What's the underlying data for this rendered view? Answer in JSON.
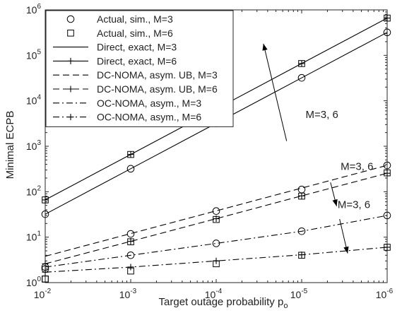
{
  "chart_data": {
    "type": "line",
    "title": "",
    "xlabel": "Target outage probability p",
    "xlabel_sub": "o",
    "ylabel": "Minimal ECPB",
    "x_scale": "log",
    "x_reversed": true,
    "y_scale": "log",
    "xlim": [
      0.01,
      1e-06
    ],
    "ylim": [
      1,
      1000000
    ],
    "x_ticks": [
      {
        "value": 0.01,
        "base": "10",
        "exp": "-2"
      },
      {
        "value": 0.001,
        "base": "10",
        "exp": "-3"
      },
      {
        "value": 0.0001,
        "base": "10",
        "exp": "-4"
      },
      {
        "value": 1e-05,
        "base": "10",
        "exp": "-5"
      },
      {
        "value": 1e-06,
        "base": "10",
        "exp": "-6"
      }
    ],
    "y_ticks": [
      {
        "value": 1,
        "base": "10",
        "exp": "0"
      },
      {
        "value": 10,
        "base": "10",
        "exp": "1"
      },
      {
        "value": 100,
        "base": "10",
        "exp": "2"
      },
      {
        "value": 1000,
        "base": "10",
        "exp": "3"
      },
      {
        "value": 10000,
        "base": "10",
        "exp": "4"
      },
      {
        "value": 100000,
        "base": "10",
        "exp": "5"
      },
      {
        "value": 1000000,
        "base": "10",
        "exp": "6"
      }
    ],
    "grid": false,
    "legend_position": "top-left",
    "x": [
      0.01,
      0.001,
      0.0001,
      1e-05,
      1e-06
    ],
    "series": [
      {
        "name": "Actual, sim., M=3",
        "marker": "circle",
        "dash": "none",
        "values": [
          2.0,
          11.8,
          37.5,
          112,
          380
        ]
      },
      {
        "name": "Actual, sim., M=6",
        "marker": "square",
        "dash": "none",
        "values": [
          1.2,
          7.9,
          24.5,
          80,
          260
        ]
      },
      {
        "name": "Direct, exact, M=3",
        "marker": "none",
        "dash": "solid",
        "values": [
          32,
          320,
          3200,
          32000,
          320000
        ]
      },
      {
        "name": "Direct, exact, M=6",
        "marker": "plus",
        "dash": "solid",
        "values": [
          66,
          660,
          6600,
          66000,
          660000
        ]
      },
      {
        "name": "DC-NOMA, asym. UB, M=3",
        "marker": "none",
        "dash": "dashed",
        "values": [
          3.8,
          12,
          38,
          120,
          380
        ]
      },
      {
        "name": "DC-NOMA, asym. UB, M=6",
        "marker": "plus",
        "dash": "dashed",
        "values": [
          2.6,
          8.1,
          25.5,
          81,
          255
        ]
      },
      {
        "name": "OC-NOMA, asym., M=3",
        "marker": "none",
        "dash": "dashdot",
        "values": [
          2.2,
          4.0,
          7.3,
          13.5,
          30
        ]
      },
      {
        "name": "OC-NOMA, asym., M=6",
        "marker": "plus",
        "dash": "dashdot",
        "values": [
          1.7,
          2.2,
          3.0,
          4.1,
          6.0
        ]
      }
    ],
    "sim_markers": [
      {
        "marker": "circle",
        "values": [
          2.0,
          11.8,
          37.5,
          112,
          380
        ]
      },
      {
        "marker": "square",
        "values": [
          1.2,
          7.9,
          24.5,
          80,
          260
        ]
      },
      {
        "marker": "circle",
        "values": [
          32,
          320,
          3200,
          32000,
          320000
        ]
      },
      {
        "marker": "square",
        "values": [
          66,
          660,
          6600,
          66000,
          660000
        ]
      },
      {
        "marker": "circle",
        "values": [
          2.2,
          4.0,
          7.3,
          13.5,
          30
        ]
      },
      {
        "marker": "square",
        "values": [
          1.2,
          1.8,
          2.6,
          4.0,
          6.0
        ]
      }
    ],
    "annotations": [
      {
        "text": "M=3, 6",
        "anchor_x": 9e-06,
        "anchor_y": 4200,
        "arrow_from": [
          1.5e-05,
          1300
        ],
        "arrow_to": [
          2.8e-05,
          180000
        ]
      },
      {
        "text": "M=3, 6",
        "anchor_x": 3.5e-06,
        "anchor_y": 300,
        "arrow_from": [
          4.6e-06,
          160
        ],
        "arrow_to": [
          3.9e-06,
          48
        ]
      },
      {
        "text": "M=3, 6",
        "anchor_x": 3.8e-06,
        "anchor_y": 44,
        "arrow_from": [
          3.6e-06,
          25
        ],
        "arrow_to": [
          2.9e-06,
          4.4
        ]
      }
    ]
  }
}
